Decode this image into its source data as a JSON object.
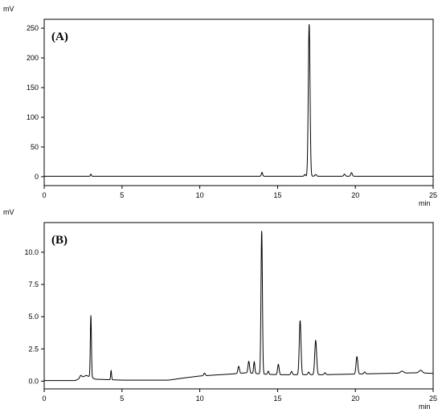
{
  "chart_data": [
    {
      "type": "line",
      "panel_label": "(A)",
      "ylabel": "mV",
      "xlabel": "min",
      "xlim": [
        0,
        25
      ],
      "ylim": [
        -15,
        265
      ],
      "xticks": [
        0,
        5,
        10,
        15,
        20,
        25
      ],
      "yticks": [
        0,
        50,
        100,
        150,
        200,
        250
      ],
      "ytick_labels": [
        "0",
        "50",
        "100",
        "150",
        "200",
        "250"
      ],
      "grid": false,
      "series": [
        {
          "baseline": 0.8,
          "peaks": [
            {
              "x": 3.0,
              "y": 3.5,
              "w": 0.03
            },
            {
              "x": 14.0,
              "y": 6.5,
              "w": 0.04
            },
            {
              "x": 16.75,
              "y": 3.0,
              "w": 0.04
            },
            {
              "x": 17.03,
              "y": 256,
              "w": 0.055
            },
            {
              "x": 17.45,
              "y": 3.0,
              "w": 0.05
            },
            {
              "x": 19.3,
              "y": 3.5,
              "w": 0.05
            },
            {
              "x": 19.75,
              "y": 6.0,
              "w": 0.05
            }
          ]
        }
      ]
    },
    {
      "type": "line",
      "panel_label": "(B)",
      "ylabel": "mV",
      "xlabel": "min",
      "xlim": [
        0,
        25
      ],
      "ylim": [
        -0.6,
        12.3
      ],
      "xticks": [
        0,
        5,
        10,
        15,
        20,
        25
      ],
      "yticks": [
        0.0,
        2.5,
        5.0,
        7.5,
        10.0
      ],
      "ytick_labels": [
        "0.0",
        "2.5",
        "5.0",
        "7.5",
        "10.0"
      ],
      "grid": false,
      "series": [
        {
          "baseline_points": [
            [
              0,
              0.05
            ],
            [
              2.0,
              0.05
            ],
            [
              2.7,
              0.45
            ],
            [
              3.3,
              0.15
            ],
            [
              5.0,
              0.08
            ],
            [
              8.0,
              0.08
            ],
            [
              9.0,
              0.25
            ],
            [
              10.0,
              0.4
            ],
            [
              12.0,
              0.55
            ],
            [
              13.0,
              0.65
            ],
            [
              14.0,
              0.55
            ],
            [
              15.0,
              0.5
            ],
            [
              16.0,
              0.5
            ],
            [
              18.0,
              0.5
            ],
            [
              20.0,
              0.55
            ],
            [
              22.0,
              0.6
            ],
            [
              24.0,
              0.65
            ],
            [
              25.0,
              0.6
            ]
          ],
          "peaks": [
            {
              "x": 2.35,
              "y": 0.2,
              "w": 0.06
            },
            {
              "x": 3.0,
              "y": 4.8,
              "w": 0.035
            },
            {
              "x": 4.3,
              "y": 0.7,
              "w": 0.03
            },
            {
              "x": 10.3,
              "y": 0.2,
              "w": 0.05
            },
            {
              "x": 12.5,
              "y": 0.55,
              "w": 0.05
            },
            {
              "x": 13.15,
              "y": 0.9,
              "w": 0.05
            },
            {
              "x": 13.5,
              "y": 0.9,
              "w": 0.04
            },
            {
              "x": 13.98,
              "y": 11.1,
              "w": 0.045
            },
            {
              "x": 14.4,
              "y": 0.25,
              "w": 0.04
            },
            {
              "x": 15.05,
              "y": 0.8,
              "w": 0.05
            },
            {
              "x": 15.9,
              "y": 0.25,
              "w": 0.05
            },
            {
              "x": 16.45,
              "y": 4.2,
              "w": 0.055
            },
            {
              "x": 17.0,
              "y": 0.2,
              "w": 0.05
            },
            {
              "x": 17.45,
              "y": 2.65,
              "w": 0.06
            },
            {
              "x": 18.05,
              "y": 0.15,
              "w": 0.05
            },
            {
              "x": 20.1,
              "y": 1.35,
              "w": 0.055
            },
            {
              "x": 20.6,
              "y": 0.15,
              "w": 0.05
            },
            {
              "x": 23.0,
              "y": 0.15,
              "w": 0.1
            },
            {
              "x": 24.2,
              "y": 0.2,
              "w": 0.1
            }
          ]
        }
      ]
    }
  ]
}
